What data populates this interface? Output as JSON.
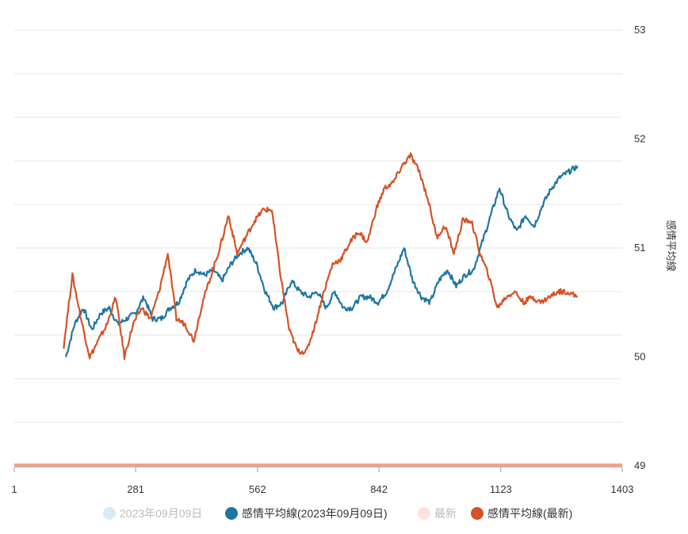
{
  "chart_data": {
    "type": "line",
    "title": "",
    "xlabel": "",
    "ylabel": "感情平均線",
    "xlim": [
      1,
      1403
    ],
    "ylim": [
      49,
      53
    ],
    "x_ticks": [
      "1",
      "281",
      "562",
      "842",
      "1123",
      "1403"
    ],
    "y_ticks": [
      "49",
      "50",
      "51",
      "52",
      "53"
    ],
    "grid": true,
    "y_axis_side": "right",
    "legend_position": "bottom",
    "legend": [
      {
        "label": "2023年09月09日",
        "color": "#d6ecf5"
      },
      {
        "label": "感情平均線(2023年09月09日)",
        "color": "#1f77a1"
      },
      {
        "label": "最新",
        "color": "#fbe3dc"
      },
      {
        "label": "感情平均線(最新)",
        "color": "#d35327"
      }
    ],
    "series": [
      {
        "name": "感情平均線(2023年09月09日)",
        "color": "#1f77a1",
        "x": [
          120,
          140,
          160,
          180,
          200,
          220,
          240,
          260,
          280,
          300,
          320,
          340,
          360,
          380,
          400,
          420,
          440,
          460,
          480,
          500,
          520,
          540,
          560,
          580,
          600,
          620,
          640,
          660,
          680,
          700,
          720,
          740,
          760,
          780,
          800,
          820,
          840,
          860,
          880,
          900,
          920,
          940,
          960,
          980,
          1000,
          1020,
          1040,
          1060,
          1080,
          1100,
          1120,
          1140,
          1160,
          1180,
          1200,
          1220,
          1240,
          1260,
          1280,
          1300
        ],
        "y": [
          50.0,
          50.3,
          50.45,
          50.25,
          50.4,
          50.45,
          50.3,
          50.35,
          50.4,
          50.55,
          50.35,
          50.35,
          50.45,
          50.5,
          50.7,
          50.8,
          50.75,
          50.8,
          50.7,
          50.85,
          50.95,
          51.0,
          50.85,
          50.6,
          50.45,
          50.5,
          50.7,
          50.6,
          50.55,
          50.6,
          50.45,
          50.6,
          50.45,
          50.45,
          50.55,
          50.55,
          50.5,
          50.6,
          50.8,
          51.0,
          50.7,
          50.55,
          50.5,
          50.7,
          50.8,
          50.65,
          50.75,
          50.8,
          51.05,
          51.3,
          51.55,
          51.3,
          51.15,
          51.3,
          51.2,
          51.4,
          51.55,
          51.65,
          51.7,
          51.75
        ]
      },
      {
        "name": "感情平均線(最新)",
        "color": "#d35327",
        "x": [
          115,
          135,
          155,
          175,
          195,
          215,
          235,
          255,
          275,
          295,
          315,
          335,
          355,
          375,
          395,
          415,
          435,
          455,
          475,
          495,
          515,
          535,
          555,
          575,
          595,
          615,
          635,
          655,
          675,
          695,
          715,
          735,
          755,
          775,
          795,
          815,
          835,
          855,
          875,
          895,
          915,
          935,
          955,
          975,
          995,
          1015,
          1035,
          1055,
          1075,
          1095,
          1115,
          1135,
          1155,
          1175,
          1195,
          1215,
          1235,
          1255,
          1275,
          1300
        ],
        "y": [
          50.1,
          50.75,
          50.35,
          50.0,
          50.15,
          50.3,
          50.55,
          50.0,
          50.3,
          50.45,
          50.35,
          50.6,
          50.95,
          50.35,
          50.3,
          50.15,
          50.5,
          50.75,
          51.0,
          51.3,
          50.95,
          51.1,
          51.25,
          51.35,
          51.35,
          50.75,
          50.25,
          50.05,
          50.05,
          50.3,
          50.6,
          50.85,
          50.9,
          51.05,
          51.15,
          51.05,
          51.35,
          51.55,
          51.6,
          51.75,
          51.85,
          51.7,
          51.45,
          51.1,
          51.2,
          50.95,
          51.25,
          51.25,
          50.95,
          50.75,
          50.45,
          50.55,
          50.6,
          50.5,
          50.55,
          50.5,
          50.55,
          50.6,
          50.6,
          50.55
        ]
      }
    ]
  }
}
